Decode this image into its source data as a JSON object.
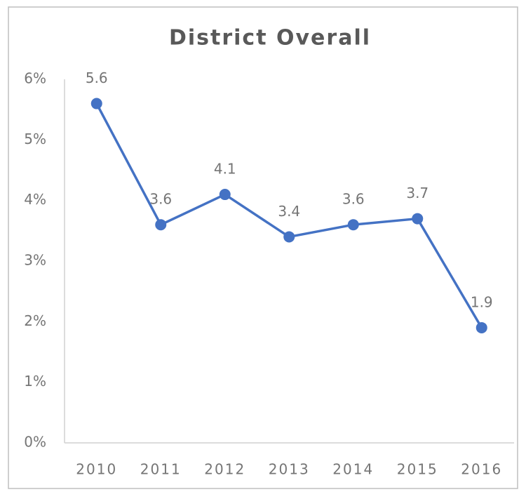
{
  "chart_data": {
    "type": "line",
    "title": "District Overall",
    "categories": [
      "2010",
      "2011",
      "2012",
      "2013",
      "2014",
      "2015",
      "2016"
    ],
    "values": [
      5.6,
      3.6,
      4.1,
      3.4,
      3.6,
      3.7,
      1.9
    ],
    "color": "#4472c4",
    "ylim": [
      0,
      6
    ],
    "yticks": [
      {
        "value": 0,
        "label": "0%"
      },
      {
        "value": 1,
        "label": "1%"
      },
      {
        "value": 2,
        "label": "2%"
      },
      {
        "value": 3,
        "label": "3%"
      },
      {
        "value": 4,
        "label": "4%"
      },
      {
        "value": 5,
        "label": "5%"
      },
      {
        "value": 6,
        "label": "6%"
      }
    ],
    "grid": false
  }
}
